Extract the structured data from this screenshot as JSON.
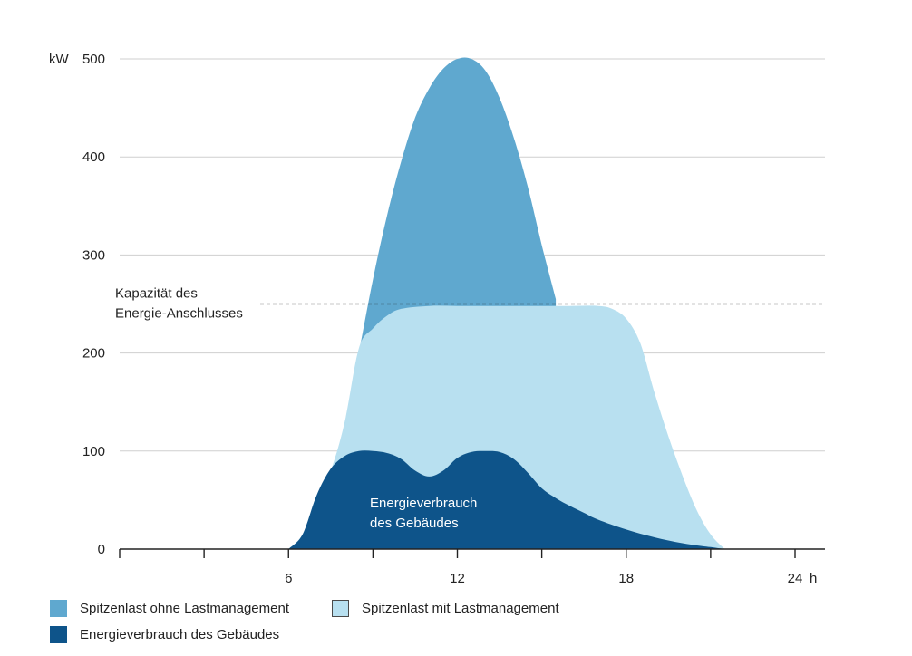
{
  "chart_data": {
    "type": "area",
    "y_unit": "kW",
    "x_unit": "h",
    "xlim": [
      0,
      24
    ],
    "ylim": [
      0,
      500
    ],
    "y_ticks": [
      0,
      100,
      200,
      300,
      400,
      500
    ],
    "x_tick_labels": [
      {
        "x": 6,
        "label": "6"
      },
      {
        "x": 12,
        "label": "12"
      },
      {
        "x": 18,
        "label": "18"
      },
      {
        "x": 24,
        "label": "24"
      }
    ],
    "x_minor_ticks": [
      0,
      3,
      6,
      9,
      12,
      15,
      18,
      21,
      24
    ],
    "grid": true,
    "reference_line": {
      "value": 250,
      "label_lines": [
        "Kapazität des",
        "Energie-Anschlusses"
      ]
    },
    "annotation": {
      "lines": [
        "Energieverbrauch",
        "des Gebäudes"
      ]
    },
    "series": [
      {
        "name": "Spitzenlast ohne Lastmanagement",
        "color": "#5fa8cf",
        "points": [
          [
            8.5,
            200
          ],
          [
            9.0,
            275
          ],
          [
            9.5,
            340
          ],
          [
            10.0,
            395
          ],
          [
            10.5,
            440
          ],
          [
            11.0,
            470
          ],
          [
            11.5,
            490
          ],
          [
            12.0,
            500
          ],
          [
            12.5,
            500
          ],
          [
            13.0,
            488
          ],
          [
            13.5,
            460
          ],
          [
            14.0,
            420
          ],
          [
            14.5,
            370
          ],
          [
            15.0,
            310
          ],
          [
            15.5,
            255
          ]
        ]
      },
      {
        "name": "Spitzenlast mit Lastmanagement",
        "color": "#b8e0f0",
        "points": [
          [
            6.0,
            0
          ],
          [
            6.5,
            15
          ],
          [
            7.0,
            50
          ],
          [
            7.5,
            80
          ],
          [
            8.0,
            130
          ],
          [
            8.5,
            205
          ],
          [
            9.0,
            225
          ],
          [
            9.5,
            238
          ],
          [
            10.0,
            245
          ],
          [
            11.0,
            248
          ],
          [
            12.0,
            248
          ],
          [
            13.0,
            248
          ],
          [
            14.0,
            248
          ],
          [
            15.0,
            248
          ],
          [
            16.0,
            248
          ],
          [
            17.0,
            248
          ],
          [
            17.5,
            245
          ],
          [
            18.0,
            235
          ],
          [
            18.5,
            210
          ],
          [
            19.0,
            160
          ],
          [
            19.5,
            115
          ],
          [
            20.0,
            75
          ],
          [
            20.5,
            40
          ],
          [
            21.0,
            15
          ],
          [
            21.5,
            0
          ]
        ]
      },
      {
        "name": "Energieverbrauch des Gebäudes",
        "color": "#0e548a",
        "points": [
          [
            6.0,
            0
          ],
          [
            6.5,
            15
          ],
          [
            7.0,
            55
          ],
          [
            7.5,
            82
          ],
          [
            8.0,
            95
          ],
          [
            8.5,
            100
          ],
          [
            9.0,
            100
          ],
          [
            9.5,
            98
          ],
          [
            10.0,
            92
          ],
          [
            10.5,
            80
          ],
          [
            11.0,
            74
          ],
          [
            11.5,
            80
          ],
          [
            12.0,
            93
          ],
          [
            12.5,
            99
          ],
          [
            13.0,
            100
          ],
          [
            13.5,
            99
          ],
          [
            14.0,
            92
          ],
          [
            14.5,
            78
          ],
          [
            15.0,
            62
          ],
          [
            15.5,
            52
          ],
          [
            16.0,
            44
          ],
          [
            16.5,
            37
          ],
          [
            17.0,
            30
          ],
          [
            18.0,
            20
          ],
          [
            19.0,
            12
          ],
          [
            20.0,
            6
          ],
          [
            21.0,
            2
          ],
          [
            21.5,
            0
          ]
        ]
      }
    ]
  },
  "legend": [
    {
      "label": "Spitzenlast ohne Lastmanagement",
      "color": "#5fa8cf"
    },
    {
      "label": "Spitzenlast mit Lastmanagement",
      "color": "#b8e0f0"
    },
    {
      "label": "Energieverbrauch des Gebäudes",
      "color": "#0e548a"
    }
  ]
}
